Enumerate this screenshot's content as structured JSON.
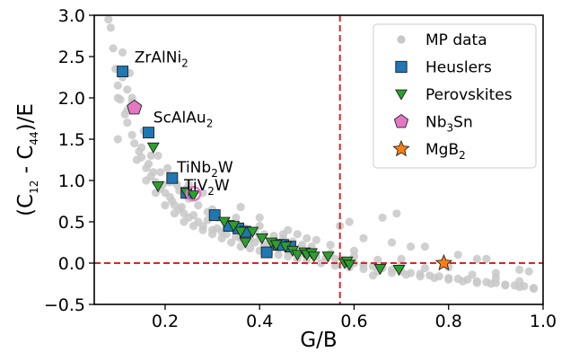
{
  "chart_data": {
    "type": "scatter",
    "title": "",
    "xlabel": "G/B",
    "ylabel_parts": [
      "(C",
      "12",
      " - C",
      "44",
      ")/E"
    ],
    "xlim": [
      0.05,
      1.0
    ],
    "ylim": [
      -0.5,
      3.0
    ],
    "xticks": [
      0.2,
      0.4,
      0.6,
      0.8,
      1.0
    ],
    "xtick_labels": [
      "0.2",
      "0.4",
      "0.6",
      "0.8",
      "1.0"
    ],
    "yticks": [
      -0.5,
      0.0,
      0.5,
      1.0,
      1.5,
      2.0,
      2.5,
      3.0
    ],
    "ytick_labels": [
      "−0.5",
      "0.0",
      "0.5",
      "1.0",
      "1.5",
      "2.0",
      "2.5",
      "3.0"
    ],
    "grid": false,
    "legend_position": "top-right",
    "reference_lines": {
      "vertical_x": 0.57,
      "horizontal_y": 0.0,
      "color": "#d62728",
      "style": "dashed"
    },
    "series": [
      {
        "name": "MP data",
        "marker": "circle",
        "color": "#c8c8c8",
        "x": [
          0.08,
          0.085,
          0.09,
          0.095,
          0.1,
          0.105,
          0.11,
          0.115,
          0.12,
          0.125,
          0.13,
          0.135,
          0.14,
          0.145,
          0.15,
          0.155,
          0.16,
          0.165,
          0.17,
          0.175,
          0.18,
          0.185,
          0.19,
          0.195,
          0.2,
          0.205,
          0.21,
          0.215,
          0.22,
          0.225,
          0.23,
          0.235,
          0.24,
          0.245,
          0.25,
          0.26,
          0.27,
          0.28,
          0.29,
          0.3,
          0.31,
          0.32,
          0.33,
          0.34,
          0.35,
          0.36,
          0.37,
          0.38,
          0.39,
          0.4,
          0.41,
          0.42,
          0.43,
          0.44,
          0.45,
          0.46,
          0.47,
          0.48,
          0.49,
          0.5,
          0.52,
          0.54,
          0.56,
          0.58,
          0.6,
          0.62,
          0.64,
          0.66,
          0.68,
          0.7,
          0.72,
          0.74,
          0.76,
          0.78,
          0.8,
          0.82,
          0.84,
          0.86,
          0.88,
          0.9,
          0.92,
          0.94,
          0.96,
          0.98,
          0.1,
          0.12,
          0.14,
          0.16,
          0.18,
          0.2,
          0.22,
          0.24,
          0.26,
          0.28,
          0.3,
          0.32,
          0.34,
          0.36,
          0.38,
          0.4,
          0.42,
          0.44,
          0.46,
          0.48,
          0.5,
          0.53,
          0.56,
          0.59,
          0.62,
          0.65,
          0.68,
          0.71,
          0.74,
          0.77,
          0.8,
          0.83,
          0.86,
          0.89,
          0.92,
          0.95,
          0.98,
          0.15,
          0.17,
          0.19,
          0.21,
          0.23,
          0.25,
          0.27,
          0.29,
          0.31,
          0.33,
          0.35,
          0.37,
          0.39,
          0.41,
          0.43,
          0.45,
          0.47,
          0.49,
          0.51,
          0.55,
          0.6,
          0.65,
          0.7,
          0.75,
          0.85,
          0.9,
          0.95,
          0.3,
          0.35,
          0.4,
          0.45,
          0.5,
          0.55,
          0.6,
          0.7,
          0.8,
          0.9,
          0.62,
          0.68,
          0.72,
          0.86,
          0.64,
          0.48,
          0.52,
          0.46,
          0.36,
          0.4,
          0.25,
          0.28,
          0.1,
          0.13,
          0.95,
          0.97,
          0.59,
          0.57,
          0.75,
          0.82,
          0.88,
          0.66,
          0.69,
          0.11,
          0.12,
          0.13
        ],
        "y": [
          2.95,
          2.85,
          2.6,
          2.35,
          2.15,
          1.98,
          2.55,
          1.8,
          1.7,
          2.3,
          1.55,
          1.45,
          1.9,
          1.35,
          1.28,
          1.6,
          1.15,
          1.2,
          1.05,
          1.1,
          0.98,
          1.3,
          0.9,
          0.95,
          0.85,
          1.15,
          0.8,
          0.75,
          0.7,
          0.95,
          0.65,
          0.68,
          0.6,
          0.9,
          0.55,
          0.58,
          0.5,
          0.45,
          0.52,
          0.4,
          0.42,
          0.38,
          0.35,
          0.45,
          0.32,
          0.3,
          0.36,
          0.28,
          0.25,
          0.3,
          0.22,
          0.24,
          0.2,
          0.18,
          0.22,
          0.15,
          0.16,
          0.14,
          0.12,
          0.1,
          0.08,
          0.06,
          0.05,
          0.03,
          0.0,
          -0.02,
          -0.04,
          -0.06,
          -0.08,
          -0.1,
          -0.12,
          -0.13,
          -0.15,
          -0.16,
          -0.18,
          -0.19,
          -0.2,
          -0.22,
          -0.23,
          -0.24,
          -0.26,
          -0.27,
          -0.28,
          -0.3,
          1.5,
          1.85,
          1.25,
          1.0,
          0.85,
          0.7,
          0.6,
          0.5,
          0.45,
          0.4,
          0.35,
          0.3,
          0.25,
          0.2,
          0.18,
          0.15,
          0.12,
          0.1,
          0.08,
          0.05,
          0.03,
          0.0,
          -0.03,
          -0.05,
          -0.07,
          -0.1,
          -0.12,
          -0.14,
          -0.16,
          -0.18,
          -0.2,
          -0.22,
          -0.24,
          -0.25,
          -0.27,
          -0.29,
          -0.31,
          1.4,
          1.3,
          1.1,
          0.98,
          0.88,
          0.78,
          0.7,
          0.62,
          0.55,
          0.5,
          0.48,
          0.42,
          0.38,
          0.35,
          0.33,
          0.3,
          0.26,
          0.22,
          0.2,
          0.12,
          0.08,
          0.04,
          -0.02,
          -0.06,
          -0.14,
          -0.18,
          -0.22,
          0.65,
          0.55,
          0.45,
          0.35,
          0.3,
          0.22,
          0.15,
          0.05,
          -0.05,
          -0.12,
          0.3,
          0.25,
          0.2,
          0.05,
          -0.15,
          0.35,
          0.28,
          0.4,
          0.68,
          0.55,
          0.95,
          0.85,
          2.0,
          1.95,
          -0.08,
          -0.1,
          0.5,
          0.45,
          0.2,
          0.1,
          0.05,
          0.55,
          0.6,
          2.25,
          2.1,
          2.0
        ]
      },
      {
        "name": "Heuslers",
        "marker": "square",
        "color": "#1f77b4",
        "x": [
          0.11,
          0.165,
          0.215,
          0.245,
          0.305,
          0.335,
          0.355,
          0.37,
          0.415,
          0.44,
          0.45,
          0.465
        ],
        "y": [
          2.32,
          1.58,
          1.03,
          0.85,
          0.58,
          0.45,
          0.42,
          0.38,
          0.13,
          0.22,
          0.22,
          0.2
        ]
      },
      {
        "name": "Perovskites",
        "marker": "triangle-down",
        "color": "#2ca02c",
        "x": [
          0.175,
          0.185,
          0.245,
          0.26,
          0.325,
          0.345,
          0.36,
          0.37,
          0.385,
          0.405,
          0.425,
          0.435,
          0.455,
          0.47,
          0.48,
          0.495,
          0.5,
          0.51,
          0.515,
          0.545,
          0.58,
          0.585,
          0.59,
          0.655,
          0.695
        ],
        "y": [
          1.4,
          0.93,
          0.85,
          0.82,
          0.5,
          0.45,
          0.38,
          0.25,
          0.38,
          0.3,
          0.25,
          0.22,
          0.2,
          0.15,
          0.1,
          0.13,
          0.1,
          0.12,
          0.08,
          0.08,
          0.0,
          0.02,
          -0.02,
          -0.07,
          -0.08
        ]
      },
      {
        "name": "Nb3Sn",
        "marker": "pentagon",
        "color": "#e377c2",
        "x": [
          0.135
        ],
        "y": [
          1.88
        ]
      },
      {
        "name": "MgB2",
        "marker": "star",
        "color": "#ff7f0e",
        "x": [
          0.79
        ],
        "y": [
          0.0
        ]
      }
    ],
    "highlight_ring": {
      "x": 0.26,
      "y": 0.84,
      "color": "#e377c2"
    },
    "annotations": [
      {
        "base": "ZrAlNi",
        "sub": "2",
        "x": 0.135,
        "y": 2.43
      },
      {
        "base": "ScAlAu",
        "sub": "2",
        "x": 0.175,
        "y": 1.7
      },
      {
        "base": "TiNb",
        "sub": "2",
        "tail": "W",
        "x": 0.225,
        "y": 1.1
      },
      {
        "base": "TiV",
        "sub": "2",
        "tail": "W",
        "x": 0.24,
        "y": 0.88
      }
    ],
    "legend": [
      {
        "marker": "circle",
        "color": "#c8c8c8",
        "label": "MP data"
      },
      {
        "marker": "square",
        "color": "#1f77b4",
        "label": "Heuslers"
      },
      {
        "marker": "triangle-down",
        "color": "#2ca02c",
        "label": "Perovskites"
      },
      {
        "marker": "pentagon",
        "color": "#e377c2",
        "label": "Nb",
        "sub": "3",
        "tail": "Sn"
      },
      {
        "marker": "star",
        "color": "#ff7f0e",
        "label": "MgB",
        "sub": "2"
      }
    ]
  }
}
